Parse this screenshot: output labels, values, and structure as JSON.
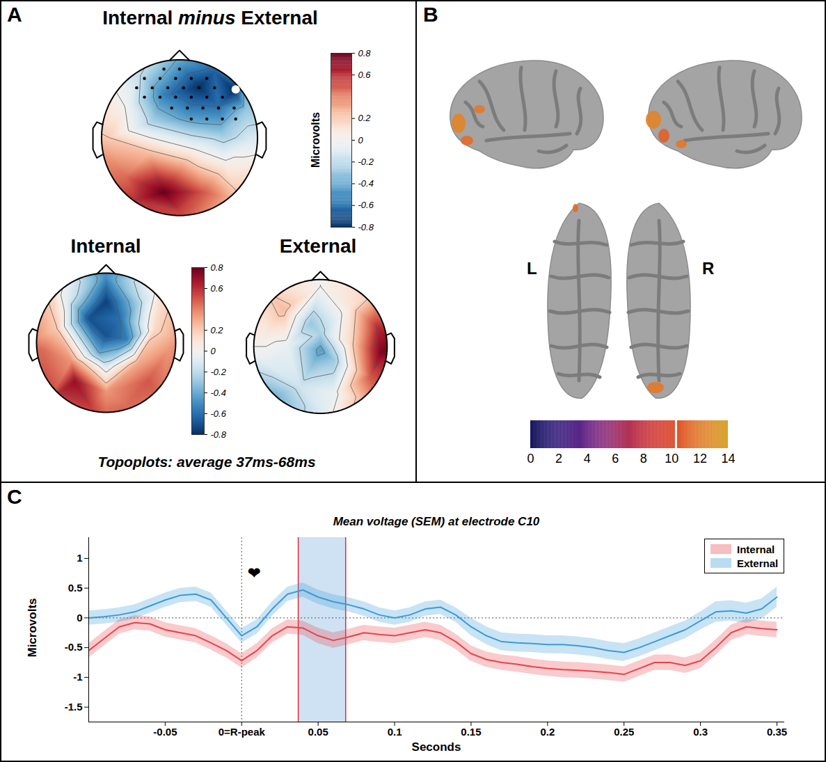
{
  "chart_data": [
    {
      "type": "topoplot",
      "panel": "A",
      "title": "Internal minus External",
      "caption": "Topoplots: average 37ms-68ms",
      "points": [
        [
          0,
          0.95,
          -0.45
        ],
        [
          -0.5,
          0.8,
          -0.2
        ],
        [
          0.45,
          0.85,
          -0.65
        ],
        [
          0.25,
          0.65,
          -0.8
        ],
        [
          0.7,
          0.6,
          -0.8
        ],
        [
          -0.2,
          0.55,
          -0.55
        ],
        [
          0.5,
          0.4,
          -0.6
        ],
        [
          0.85,
          0.35,
          -0.3
        ],
        [
          -0.7,
          0.4,
          0
        ],
        [
          -0.35,
          0.2,
          -0.25
        ],
        [
          0.1,
          0.25,
          -0.45
        ],
        [
          0.55,
          0.05,
          -0.3
        ],
        [
          0.9,
          -0.05,
          -0.1
        ],
        [
          -0.9,
          0,
          0.2
        ],
        [
          -0.4,
          -0.2,
          0.25
        ],
        [
          0.2,
          -0.15,
          0
        ],
        [
          0.6,
          -0.35,
          0.05
        ],
        [
          -0.7,
          -0.5,
          0.45
        ],
        [
          -0.2,
          -0.7,
          0.8
        ],
        [
          0.3,
          -0.7,
          0.5
        ],
        [
          0,
          -0.95,
          0.55
        ],
        [
          -0.55,
          -0.8,
          0.6
        ],
        [
          0.7,
          -0.65,
          0.2
        ],
        [
          0,
          1.15,
          -0.35
        ],
        [
          0.8,
          0.8,
          -0.5
        ],
        [
          1.15,
          0,
          -0.1
        ],
        [
          0.8,
          -0.8,
          0.2
        ],
        [
          0,
          -1.15,
          0.5
        ],
        [
          -0.8,
          -0.8,
          0.55
        ],
        [
          -1.15,
          0,
          0.25
        ],
        [
          -0.8,
          0.8,
          -0.05
        ]
      ],
      "electrodes": [
        [
          -0.2,
          0.88
        ],
        [
          0,
          0.88
        ],
        [
          -0.45,
          0.76
        ],
        [
          -0.25,
          0.76
        ],
        [
          -0.05,
          0.76
        ],
        [
          0.15,
          0.76
        ],
        [
          0.35,
          0.76
        ],
        [
          -0.55,
          0.64
        ],
        [
          -0.35,
          0.64
        ],
        [
          -0.15,
          0.64
        ],
        [
          0.05,
          0.64
        ],
        [
          0.25,
          0.64
        ],
        [
          0.45,
          0.64
        ],
        [
          -0.45,
          0.52
        ],
        [
          -0.25,
          0.52
        ],
        [
          -0.05,
          0.52
        ],
        [
          0.15,
          0.52
        ],
        [
          0.35,
          0.52
        ],
        [
          0.55,
          0.52
        ],
        [
          -0.1,
          0.38
        ],
        [
          0.1,
          0.38
        ],
        [
          0.3,
          0.38
        ],
        [
          0.5,
          0.38
        ],
        [
          0.7,
          0.38
        ],
        [
          0.15,
          0.24
        ],
        [
          0.35,
          0.24
        ],
        [
          0.55,
          0.24
        ],
        [
          0.72,
          0.24
        ]
      ],
      "highlight": [
        0.72,
        0.62
      ],
      "colorbar": {
        "label": "Microvolts",
        "range": [
          -0.8,
          0.8
        ],
        "ticks": [
          0.8,
          0.6,
          0.2,
          0,
          -0.2,
          -0.4,
          -0.6,
          -0.8
        ]
      }
    },
    {
      "type": "topoplot",
      "title": "Internal",
      "points": [
        [
          0,
          0.95,
          -0.5
        ],
        [
          0,
          0.6,
          -0.75
        ],
        [
          -0.25,
          0.35,
          -0.7
        ],
        [
          0.2,
          0.35,
          -0.6
        ],
        [
          0,
          0.1,
          -0.7
        ],
        [
          0.3,
          0.05,
          -0.55
        ],
        [
          -0.1,
          -0.15,
          -0.4
        ],
        [
          0,
          -0.35,
          -0.1
        ],
        [
          -0.55,
          0.6,
          -0.1
        ],
        [
          0.55,
          0.6,
          -0.15
        ],
        [
          -0.7,
          0.2,
          0.2
        ],
        [
          0.7,
          0.2,
          0.15
        ],
        [
          -0.9,
          -0.1,
          0.45
        ],
        [
          0.9,
          -0.1,
          0.35
        ],
        [
          -0.45,
          -0.55,
          0.7
        ],
        [
          0.6,
          -0.55,
          0.5
        ],
        [
          0,
          -0.7,
          0.35
        ],
        [
          -0.2,
          -0.95,
          0.55
        ],
        [
          0.3,
          -0.9,
          0.45
        ],
        [
          -0.5,
          -0.25,
          0.35
        ],
        [
          0.45,
          -0.3,
          0.3
        ],
        [
          0,
          1.15,
          -0.6
        ],
        [
          0.8,
          0.8,
          0.1
        ],
        [
          1.15,
          0,
          0.4
        ],
        [
          0.8,
          -0.8,
          0.45
        ],
        [
          0,
          -1.15,
          0.5
        ],
        [
          -0.8,
          -0.8,
          0.55
        ],
        [
          -1.15,
          0,
          0.45
        ],
        [
          -0.8,
          0.8,
          0.15
        ]
      ],
      "colorbar": {
        "range": [
          -0.8,
          0.8
        ],
        "ticks": [
          0.8,
          0.6,
          0.2,
          0,
          -0.2,
          -0.4,
          -0.6,
          -0.8
        ]
      }
    },
    {
      "type": "topoplot",
      "title": "External",
      "points": [
        [
          0,
          0.9,
          0
        ],
        [
          -0.55,
          0.55,
          0.25
        ],
        [
          0.45,
          0.6,
          0.1
        ],
        [
          0.85,
          0.3,
          0.6
        ],
        [
          0.9,
          -0.1,
          0.75
        ],
        [
          0.75,
          -0.45,
          0.5
        ],
        [
          0,
          0.2,
          -0.25
        ],
        [
          0,
          -0.05,
          -0.45
        ],
        [
          -0.15,
          0.35,
          -0.3
        ],
        [
          0.2,
          -0.2,
          -0.3
        ],
        [
          -0.5,
          0,
          -0.05
        ],
        [
          0.45,
          0.05,
          0.15
        ],
        [
          -0.75,
          -0.3,
          -0.1
        ],
        [
          -0.7,
          -0.75,
          -0.4
        ],
        [
          -0.3,
          -0.6,
          -0.15
        ],
        [
          0.2,
          -0.7,
          -0.05
        ],
        [
          0,
          -0.95,
          -0.1
        ],
        [
          -0.85,
          0.15,
          0.05
        ],
        [
          0,
          1.15,
          0
        ],
        [
          0.8,
          0.8,
          0.2
        ],
        [
          1.15,
          0,
          0.8
        ],
        [
          0.8,
          -0.8,
          0.4
        ],
        [
          0,
          -1.15,
          -0.1
        ],
        [
          -0.8,
          -0.8,
          -0.45
        ],
        [
          -1.15,
          0,
          0
        ],
        [
          -0.8,
          0.8,
          0.2
        ]
      ]
    },
    {
      "type": "brain",
      "panel": "B",
      "hemisphere_labels": [
        "L",
        "R"
      ],
      "clusters": [
        12.5,
        11.5,
        12,
        12.5,
        11,
        12,
        11.5,
        12
      ],
      "colorbar": {
        "range": [
          0,
          14
        ],
        "ticks": [
          0,
          2,
          4,
          6,
          8,
          10,
          12,
          14
        ],
        "threshold": 10.3
      }
    },
    {
      "type": "line",
      "panel": "C",
      "title": "Mean voltage (SEM) at electrode C10",
      "xlabel": "Seconds",
      "ylabel": "Microvolts",
      "legend": "top-right",
      "x": [
        -0.1,
        -0.09,
        -0.08,
        -0.07,
        -0.06,
        -0.05,
        -0.04,
        -0.03,
        -0.02,
        -0.01,
        0,
        0.01,
        0.02,
        0.03,
        0.04,
        0.05,
        0.06,
        0.07,
        0.08,
        0.09,
        0.1,
        0.11,
        0.12,
        0.13,
        0.14,
        0.15,
        0.16,
        0.17,
        0.18,
        0.19,
        0.2,
        0.21,
        0.22,
        0.23,
        0.24,
        0.25,
        0.26,
        0.27,
        0.28,
        0.29,
        0.3,
        0.31,
        0.32,
        0.33,
        0.34,
        0.35
      ],
      "series": [
        {
          "name": "Internal",
          "color": "#e8434c",
          "values": [
            -0.55,
            -0.35,
            -0.15,
            -0.08,
            -0.1,
            -0.2,
            -0.25,
            -0.3,
            -0.42,
            -0.55,
            -0.72,
            -0.55,
            -0.3,
            -0.15,
            -0.17,
            -0.3,
            -0.38,
            -0.32,
            -0.25,
            -0.28,
            -0.3,
            -0.25,
            -0.2,
            -0.25,
            -0.4,
            -0.6,
            -0.7,
            -0.75,
            -0.78,
            -0.82,
            -0.85,
            -0.87,
            -0.88,
            -0.9,
            -0.92,
            -0.95,
            -0.85,
            -0.75,
            -0.75,
            -0.8,
            -0.72,
            -0.5,
            -0.25,
            -0.15,
            -0.18,
            -0.2
          ],
          "sem": [
            0.12,
            0.12,
            0.12,
            0.12,
            0.12,
            0.12,
            0.12,
            0.12,
            0.12,
            0.12,
            0.12,
            0.12,
            0.12,
            0.12,
            0.12,
            0.13,
            0.13,
            0.13,
            0.13,
            0.13,
            0.13,
            0.13,
            0.13,
            0.13,
            0.13,
            0.13,
            0.13,
            0.13,
            0.13,
            0.13,
            0.13,
            0.13,
            0.13,
            0.13,
            0.13,
            0.13,
            0.13,
            0.13,
            0.13,
            0.13,
            0.13,
            0.13,
            0.13,
            0.13,
            0.13,
            0.13
          ]
        },
        {
          "name": "External",
          "color": "#3a9bd9",
          "values": [
            0,
            0.02,
            0.05,
            0.1,
            0.2,
            0.3,
            0.38,
            0.4,
            0.3,
            0,
            -0.3,
            -0.15,
            0.15,
            0.4,
            0.47,
            0.35,
            0.27,
            0.22,
            0.15,
            0.05,
            0,
            0.05,
            0.15,
            0.18,
            0.05,
            -0.15,
            -0.3,
            -0.4,
            -0.42,
            -0.43,
            -0.45,
            -0.45,
            -0.47,
            -0.5,
            -0.55,
            -0.58,
            -0.5,
            -0.4,
            -0.3,
            -0.2,
            -0.05,
            0.1,
            0.12,
            0.08,
            0.15,
            0.35
          ],
          "sem": [
            0.12,
            0.12,
            0.12,
            0.12,
            0.12,
            0.12,
            0.12,
            0.12,
            0.12,
            0.12,
            0.12,
            0.12,
            0.12,
            0.12,
            0.12,
            0.12,
            0.12,
            0.12,
            0.12,
            0.12,
            0.12,
            0.12,
            0.12,
            0.12,
            0.12,
            0.15,
            0.15,
            0.15,
            0.15,
            0.15,
            0.15,
            0.15,
            0.15,
            0.15,
            0.15,
            0.15,
            0.15,
            0.15,
            0.15,
            0.15,
            0.15,
            0.17,
            0.17,
            0.17,
            0.17,
            0.17
          ]
        }
      ],
      "xlim": [
        -0.1,
        0.355
      ],
      "xticks": [
        -0.05,
        {
          "value": 0,
          "label": "0=R-peak"
        },
        0.05,
        0.1,
        0.15,
        0.2,
        0.25,
        0.3,
        0.35
      ],
      "ylim": [
        -1.75,
        1.35
      ],
      "yticks": [
        1,
        0.5,
        0,
        -0.5,
        -1,
        -1.5
      ],
      "window": [
        0.037,
        0.068
      ],
      "rules": {
        "x": [
          0
        ],
        "y": [
          0
        ]
      },
      "annotations": [
        {
          "text": "❤",
          "x": 0.008,
          "y": 0.75
        }
      ]
    }
  ]
}
